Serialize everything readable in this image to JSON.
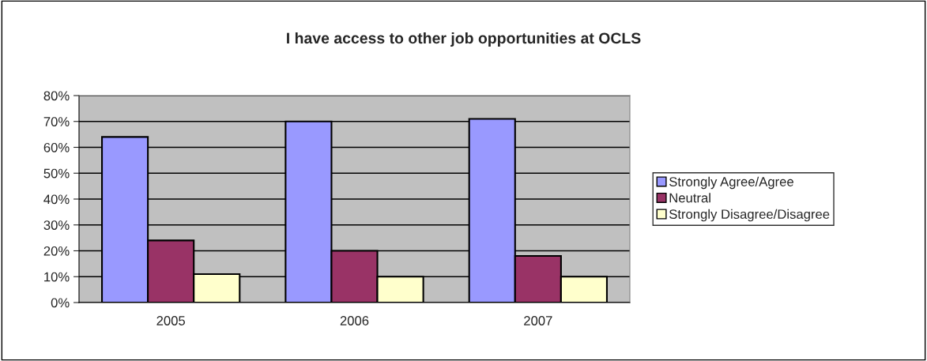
{
  "chart_data": {
    "type": "bar",
    "title": "I have access to other job opportunities at OCLS",
    "categories": [
      "2005",
      "2006",
      "2007"
    ],
    "series": [
      {
        "name": "Strongly Agree/Agree",
        "color": "#9999ff",
        "values": [
          64,
          70,
          71
        ]
      },
      {
        "name": "Neutral",
        "color": "#993366",
        "values": [
          24,
          20,
          18
        ]
      },
      {
        "name": "Strongly Disagree/Disagree",
        "color": "#ffffcc",
        "values": [
          11,
          10,
          10
        ]
      }
    ],
    "ylim": [
      0,
      80
    ],
    "yticks": [
      {
        "value": 0,
        "label": "0%"
      },
      {
        "value": 10,
        "label": "10%"
      },
      {
        "value": 20,
        "label": "20%"
      },
      {
        "value": 30,
        "label": "30%"
      },
      {
        "value": 40,
        "label": "40%"
      },
      {
        "value": 50,
        "label": "50%"
      },
      {
        "value": 60,
        "label": "60%"
      },
      {
        "value": 70,
        "label": "70%"
      },
      {
        "value": 80,
        "label": "80%"
      }
    ],
    "grid": "y",
    "legend": "right"
  }
}
